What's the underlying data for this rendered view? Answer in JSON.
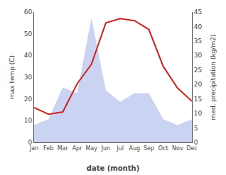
{
  "chart_data": {
    "type": "line",
    "x": [
      1,
      2,
      3,
      4,
      5,
      6,
      7,
      8,
      9,
      10,
      11,
      12
    ],
    "xlim": [
      1,
      12
    ],
    "xticks": [
      {
        "value": 1,
        "label": "Jan"
      },
      {
        "value": 2,
        "label": "Feb"
      },
      {
        "value": 3,
        "label": "Mar"
      },
      {
        "value": 4,
        "label": "Apr"
      },
      {
        "value": 5,
        "label": "May"
      },
      {
        "value": 6,
        "label": "Jun"
      },
      {
        "value": 7,
        "label": "Jul"
      },
      {
        "value": 8,
        "label": "Aug"
      },
      {
        "value": 9,
        "label": "Sep"
      },
      {
        "value": 10,
        "label": "Oct"
      },
      {
        "value": 11,
        "label": "Nov"
      },
      {
        "value": 12,
        "label": "Dec"
      }
    ],
    "xlabel": "date (month)",
    "ylabel": "max temp (C)",
    "y2label": "med. precipitation (kg/m2)",
    "ylim": [
      0,
      60
    ],
    "yticks": [
      0,
      10,
      20,
      30,
      40,
      50,
      60
    ],
    "y2lim": [
      0,
      45
    ],
    "y2ticks": [
      0,
      5,
      10,
      15,
      20,
      25,
      30,
      35,
      40,
      45
    ],
    "grid": false,
    "series": [
      {
        "type": "area",
        "axis": "y2",
        "color": "#b8c4ee",
        "values": [
          6,
          8,
          19,
          17,
          43,
          18,
          14,
          17,
          17,
          8,
          6,
          8
        ]
      },
      {
        "type": "line",
        "color": "#cc2222",
        "values": [
          16,
          13,
          14,
          27,
          36,
          55,
          57,
          56,
          52,
          35,
          25,
          19
        ]
      }
    ]
  }
}
